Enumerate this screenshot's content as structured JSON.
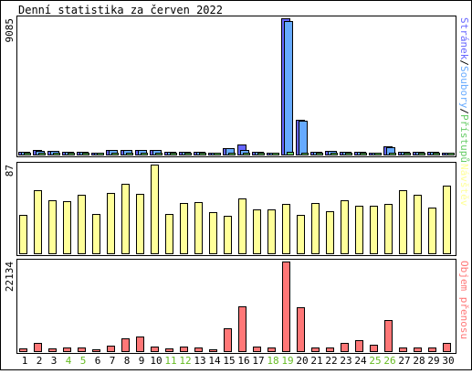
{
  "title": "Denní statistika za červen 2022",
  "colors": {
    "background": "#ffffff",
    "frame": "#000000",
    "requests": "#6666ff",
    "files": "#66aaff",
    "pages": "#66cc66",
    "visits": "#ffff99",
    "bytes": "#ff7777",
    "weekend_label": "#66bb22"
  },
  "chart_data": [
    {
      "type": "bar",
      "panel": "hits",
      "ymax_label": "9085",
      "ylim": [
        0,
        9085
      ],
      "legend_parts": [
        {
          "text": "Stránek",
          "color": "#6666ff"
        },
        {
          "text": "/",
          "color": "#000000"
        },
        {
          "text": "Soubory",
          "color": "#66aaff"
        },
        {
          "text": "/",
          "color": "#000000"
        },
        {
          "text": "Přístupů",
          "color": "#66cc66"
        }
      ],
      "categories": [
        "1",
        "2",
        "3",
        "4",
        "5",
        "6",
        "7",
        "8",
        "9",
        "10",
        "11",
        "12",
        "13",
        "14",
        "15",
        "16",
        "17",
        "18",
        "19",
        "20",
        "21",
        "22",
        "23",
        "24",
        "25",
        "26",
        "27",
        "28",
        "29",
        "30"
      ],
      "series": [
        {
          "name": "Přístupů",
          "values": [
            200,
            280,
            230,
            200,
            190,
            150,
            320,
            320,
            320,
            300,
            190,
            200,
            170,
            150,
            420,
            700,
            200,
            150,
            9085,
            2300,
            180,
            250,
            200,
            180,
            140,
            520,
            200,
            180,
            170,
            150
          ]
        },
        {
          "name": "Soubory",
          "values": [
            190,
            270,
            220,
            190,
            180,
            140,
            300,
            300,
            300,
            290,
            180,
            190,
            160,
            140,
            410,
            300,
            190,
            140,
            8900,
            2240,
            170,
            240,
            190,
            170,
            130,
            500,
            190,
            170,
            160,
            140
          ]
        },
        {
          "name": "Stránek",
          "values": [
            60,
            80,
            70,
            60,
            60,
            50,
            90,
            90,
            90,
            80,
            60,
            60,
            50,
            50,
            100,
            90,
            60,
            50,
            170,
            90,
            60,
            70,
            60,
            60,
            50,
            90,
            60,
            60,
            50,
            50
          ]
        }
      ]
    },
    {
      "type": "bar",
      "panel": "visits",
      "ymax_label": "87",
      "ylim": [
        0,
        87
      ],
      "legend_parts": [
        {
          "text": "Návštěv",
          "color": "#ffff99"
        }
      ],
      "categories": [
        "1",
        "2",
        "3",
        "4",
        "5",
        "6",
        "7",
        "8",
        "9",
        "10",
        "11",
        "12",
        "13",
        "14",
        "15",
        "16",
        "17",
        "18",
        "19",
        "20",
        "21",
        "22",
        "23",
        "24",
        "25",
        "26",
        "27",
        "28",
        "29",
        "30"
      ],
      "series": [
        {
          "name": "Návštěv",
          "values": [
            38,
            62,
            52,
            51,
            57,
            39,
            59,
            68,
            58,
            87,
            39,
            49,
            50,
            40,
            37,
            54,
            43,
            43,
            48,
            38,
            49,
            41,
            52,
            47,
            47,
            48,
            62,
            57,
            45,
            66
          ]
        }
      ]
    },
    {
      "type": "bar",
      "panel": "bytes",
      "ymax_label": "22134",
      "ylim": [
        0,
        22134
      ],
      "legend_parts": [
        {
          "text": "Objem přenosu",
          "color": "#ff7777"
        }
      ],
      "categories": [
        "1",
        "2",
        "3",
        "4",
        "5",
        "6",
        "7",
        "8",
        "9",
        "10",
        "11",
        "12",
        "13",
        "14",
        "15",
        "16",
        "17",
        "18",
        "19",
        "20",
        "21",
        "22",
        "23",
        "24",
        "25",
        "26",
        "27",
        "28",
        "29",
        "30"
      ],
      "series": [
        {
          "name": "Objem přenosu",
          "values": [
            700,
            2000,
            700,
            900,
            800,
            500,
            1300,
            3200,
            3700,
            1200,
            700,
            1200,
            900,
            500,
            5700,
            11000,
            1200,
            900,
            22134,
            10800,
            900,
            800,
            2100,
            2600,
            1500,
            7600,
            800,
            1000,
            1000,
            2000
          ]
        }
      ]
    }
  ],
  "x_labels": [
    {
      "text": "1",
      "weekend": false
    },
    {
      "text": "2",
      "weekend": false
    },
    {
      "text": "3",
      "weekend": false
    },
    {
      "text": "4",
      "weekend": true
    },
    {
      "text": "5",
      "weekend": true
    },
    {
      "text": "6",
      "weekend": false
    },
    {
      "text": "7",
      "weekend": false
    },
    {
      "text": "8",
      "weekend": false
    },
    {
      "text": "9",
      "weekend": false
    },
    {
      "text": "10",
      "weekend": false
    },
    {
      "text": "11",
      "weekend": true
    },
    {
      "text": "12",
      "weekend": true
    },
    {
      "text": "13",
      "weekend": false
    },
    {
      "text": "14",
      "weekend": false
    },
    {
      "text": "15",
      "weekend": false
    },
    {
      "text": "16",
      "weekend": false
    },
    {
      "text": "17",
      "weekend": false
    },
    {
      "text": "18",
      "weekend": true
    },
    {
      "text": "19",
      "weekend": true
    },
    {
      "text": "20",
      "weekend": false
    },
    {
      "text": "21",
      "weekend": false
    },
    {
      "text": "22",
      "weekend": false
    },
    {
      "text": "23",
      "weekend": false
    },
    {
      "text": "24",
      "weekend": false
    },
    {
      "text": "25",
      "weekend": true
    },
    {
      "text": "26",
      "weekend": true
    },
    {
      "text": "27",
      "weekend": false
    },
    {
      "text": "28",
      "weekend": false
    },
    {
      "text": "29",
      "weekend": false
    },
    {
      "text": "30",
      "weekend": false
    }
  ]
}
